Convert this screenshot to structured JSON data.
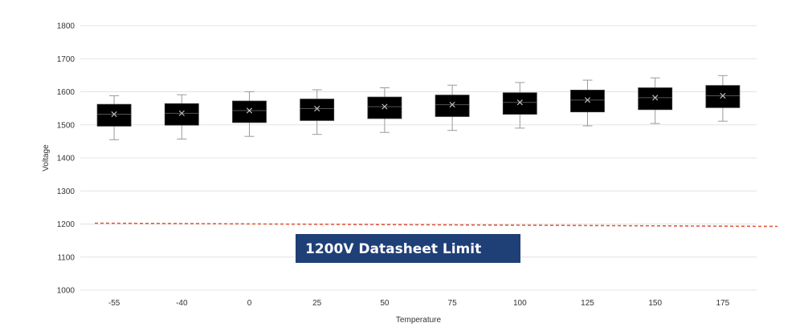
{
  "chart_data": {
    "type": "box",
    "title": "",
    "xlabel": "Temperature",
    "ylabel": "Voltage",
    "ylim": [
      1000,
      1800
    ],
    "yticks": [
      "1000",
      "1100",
      "1200",
      "1300",
      "1400",
      "1500",
      "1600",
      "1700",
      "1800"
    ],
    "grid": true,
    "categories": [
      "-55",
      "-40",
      "0",
      "25",
      "50",
      "75",
      "100",
      "125",
      "150",
      "175"
    ],
    "boxes": [
      {
        "min": 1455,
        "q1": 1496,
        "median": 1532,
        "q3": 1562,
        "max": 1588,
        "mean": 1532
      },
      {
        "min": 1457,
        "q1": 1499,
        "median": 1535,
        "q3": 1564,
        "max": 1591,
        "mean": 1535
      },
      {
        "min": 1465,
        "q1": 1507,
        "median": 1543,
        "q3": 1572,
        "max": 1600,
        "mean": 1543
      },
      {
        "min": 1471,
        "q1": 1513,
        "median": 1549,
        "q3": 1578,
        "max": 1606,
        "mean": 1549
      },
      {
        "min": 1477,
        "q1": 1519,
        "median": 1555,
        "q3": 1584,
        "max": 1612,
        "mean": 1555
      },
      {
        "min": 1483,
        "q1": 1525,
        "median": 1561,
        "q3": 1590,
        "max": 1620,
        "mean": 1561
      },
      {
        "min": 1490,
        "q1": 1532,
        "median": 1568,
        "q3": 1597,
        "max": 1628,
        "mean": 1568
      },
      {
        "min": 1497,
        "q1": 1539,
        "median": 1575,
        "q3": 1605,
        "max": 1635,
        "mean": 1575
      },
      {
        "min": 1504,
        "q1": 1546,
        "median": 1582,
        "q3": 1612,
        "max": 1642,
        "mean": 1582
      },
      {
        "min": 1511,
        "q1": 1552,
        "median": 1588,
        "q3": 1619,
        "max": 1649,
        "mean": 1588
      }
    ],
    "limit_line": {
      "value": 1200,
      "style": "dashed",
      "color": "#e05a3f"
    },
    "annotation": {
      "text": "1200V Datasheet Limit",
      "background": "#1f3f77"
    },
    "colors": {
      "box": "#000000",
      "whisker": "#9a9a9a",
      "mean_marker": "#bfbfbf",
      "grid": "#e3e3e3"
    }
  }
}
